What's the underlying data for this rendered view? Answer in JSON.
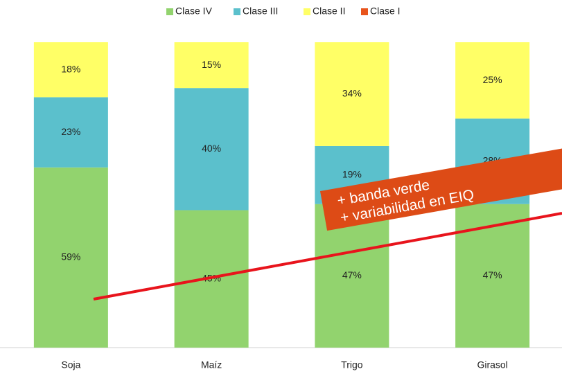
{
  "chart_data": {
    "type": "stacked_bar",
    "categories": [
      "Soja",
      "Maíz",
      "Trigo",
      "Girasol"
    ],
    "series": [
      {
        "name": "Clase IV",
        "color": "#92d36e",
        "values": [
          59,
          45,
          47,
          47
        ],
        "value_labels": [
          "59%",
          "45%",
          "47%",
          "47%"
        ]
      },
      {
        "name": "Clase III",
        "color": "#5bc0cc",
        "values": [
          23,
          40,
          19,
          28
        ],
        "value_labels": [
          "23%",
          "40%",
          "19%",
          "28%"
        ]
      },
      {
        "name": "Clase II",
        "color": "#ffff66",
        "values": [
          18,
          15,
          34,
          25
        ],
        "value_labels": [
          "18%",
          "15%",
          "34%",
          "25%"
        ]
      },
      {
        "name": "Clase I",
        "color": "#e8541c",
        "values": [
          0,
          0,
          0,
          0
        ]
      }
    ],
    "ylim": [
      0,
      100
    ],
    "legend": "top",
    "annotations": [
      "+ banda verde",
      "+ variabilidad en EIQ"
    ]
  }
}
